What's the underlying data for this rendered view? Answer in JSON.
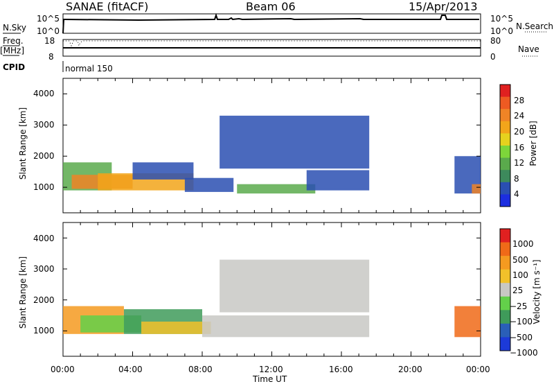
{
  "header": {
    "site": "SANAE (fitACF)",
    "beam": "Beam 06",
    "date": "15/Apr/2013"
  },
  "sky_panel": {
    "left_label": "N.Sky",
    "right_label": "N.Search",
    "left_ticks": [
      "10^5",
      "10^0"
    ],
    "right_ticks": [
      "10^5",
      "10^0"
    ]
  },
  "freq_panel": {
    "left_label_1": "Freq.",
    "left_label_2": "[MHz]",
    "right_label": "Nave",
    "left_ticks": [
      "18",
      "8"
    ],
    "right_ticks": [
      "80",
      "0"
    ]
  },
  "cpid_panel": {
    "label": "CPID",
    "mode_text": "normal 150"
  },
  "time_axis": {
    "label": "Time UT",
    "ticks": [
      "00:00",
      "04:00",
      "08:00",
      "12:00",
      "16:00",
      "20:00",
      "00:00"
    ]
  },
  "colors": {
    "frame": "#000000",
    "missing": "#ffffff"
  },
  "chart_data": [
    {
      "type": "heatmap",
      "panel": "power",
      "xlabel": "Time UT",
      "ylabel": "Slant Range [km]",
      "xlim": [
        0,
        24
      ],
      "ylim": [
        180,
        4500
      ],
      "yticks": [
        "1000",
        "2000",
        "3000",
        "4000"
      ],
      "colorbar": {
        "label": "Power [dB]",
        "ticks": [
          "4",
          "8",
          "12",
          "16",
          "20",
          "24",
          "28"
        ],
        "colors": [
          "#1c2ee0",
          "#2a4fb2",
          "#3d8a5c",
          "#5aaa4c",
          "#7dd63a",
          "#e6d21e",
          "#f2a51a",
          "#f08426",
          "#ee5a22",
          "#e02020"
        ]
      },
      "blobs": [
        {
          "t0": 0.0,
          "t1": 2.8,
          "r0": 900,
          "r1": 1800,
          "color": "#5aaa4c"
        },
        {
          "t0": 0.5,
          "t1": 4.0,
          "r0": 950,
          "r1": 1400,
          "color": "#f08426"
        },
        {
          "t0": 2.0,
          "t1": 7.5,
          "r0": 900,
          "r1": 1450,
          "color": "#f2a51a"
        },
        {
          "t0": 4.0,
          "t1": 7.5,
          "r0": 1250,
          "r1": 1800,
          "color": "#2a4fb2"
        },
        {
          "t0": 7.0,
          "t1": 9.8,
          "r0": 850,
          "r1": 1300,
          "color": "#2a4fb2"
        },
        {
          "t0": 10.0,
          "t1": 14.5,
          "r0": 800,
          "r1": 1100,
          "color": "#5aaa4c"
        },
        {
          "t0": 14.0,
          "t1": 17.6,
          "r0": 900,
          "r1": 1550,
          "color": "#2a4fb2"
        },
        {
          "t0": 9.0,
          "t1": 17.6,
          "r0": 1600,
          "r1": 3300,
          "color": "#2a4fb2"
        },
        {
          "t0": 22.5,
          "t1": 24.0,
          "r0": 800,
          "r1": 2000,
          "color": "#2a4fb2"
        },
        {
          "t0": 23.5,
          "t1": 24.0,
          "r0": 800,
          "r1": 1100,
          "color": "#f08426"
        }
      ]
    },
    {
      "type": "heatmap",
      "panel": "velocity",
      "xlabel": "Time UT",
      "ylabel": "Slant Range [km]",
      "xlim": [
        0,
        24
      ],
      "ylim": [
        180,
        4500
      ],
      "yticks": [
        "1000",
        "2000",
        "3000",
        "4000"
      ],
      "colorbar": {
        "label": "Velocity [m s⁻¹]",
        "ticks": [
          "1000",
          "500",
          "100",
          "25",
          "−25",
          "−100",
          "−500",
          "−1000"
        ],
        "colors": [
          "#1c3ad8",
          "#2a5fb8",
          "#3f9b5a",
          "#63d04a",
          "#c8c8c4",
          "#f2c12a",
          "#f59a20",
          "#f06a18",
          "#e02020"
        ]
      },
      "blobs": [
        {
          "t0": 0.0,
          "t1": 3.5,
          "r0": 900,
          "r1": 1800,
          "color": "#f59a20"
        },
        {
          "t0": 1.0,
          "t1": 4.5,
          "r0": 950,
          "r1": 1500,
          "color": "#63d04a"
        },
        {
          "t0": 3.5,
          "t1": 8.0,
          "r0": 900,
          "r1": 1700,
          "color": "#3f9b5a"
        },
        {
          "t0": 4.5,
          "t1": 8.5,
          "r0": 900,
          "r1": 1300,
          "color": "#f2c12a"
        },
        {
          "t0": 8.0,
          "t1": 17.6,
          "r0": 800,
          "r1": 1500,
          "color": "#c8c8c4"
        },
        {
          "t0": 9.0,
          "t1": 17.6,
          "r0": 1600,
          "r1": 3300,
          "color": "#c8c8c4"
        },
        {
          "t0": 22.5,
          "t1": 24.0,
          "r0": 800,
          "r1": 1800,
          "color": "#f06a18"
        }
      ]
    }
  ]
}
